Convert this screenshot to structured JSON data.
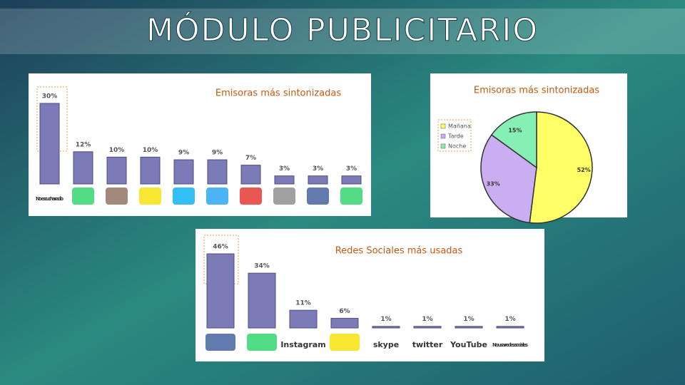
{
  "slide": {
    "title": "MÓDULO PUBLICITARIO"
  },
  "chart_data": [
    {
      "type": "bar",
      "title": "Emisoras más sintonizadas",
      "categories": [
        "No escucha radio",
        null,
        null,
        null,
        null,
        null,
        null,
        null,
        null,
        null
      ],
      "values": [
        30,
        12,
        10,
        10,
        9,
        9,
        7,
        3,
        3,
        3
      ],
      "value_labels": [
        "30%",
        "12%",
        "10%",
        "10%",
        "9%",
        "9%",
        "7%",
        "3%",
        "3%",
        "3%"
      ],
      "color": "#7b7bb8"
    },
    {
      "type": "pie",
      "title": "Emisoras más sintonizadas",
      "categories": [
        "Mañana",
        "Tarde",
        "Noche"
      ],
      "values": [
        52,
        33,
        15
      ],
      "value_labels": [
        "52%",
        "33%",
        "15%"
      ],
      "colors": [
        "#ffff66",
        "#c9aef2",
        "#86f0b4"
      ],
      "legend": "left"
    },
    {
      "type": "bar",
      "title": "Redes  Sociales más usadas",
      "categories": [
        null,
        null,
        "Instagram",
        null,
        "skype",
        "twitter",
        "YouTube",
        "No usa redes sociales"
      ],
      "values": [
        46,
        34,
        11,
        6,
        1,
        1,
        1,
        1
      ],
      "value_labels": [
        "46%",
        "34%",
        "11%",
        "6%",
        "1%",
        "1%",
        "1%",
        "1%"
      ],
      "color": "#7b7bb8"
    }
  ]
}
